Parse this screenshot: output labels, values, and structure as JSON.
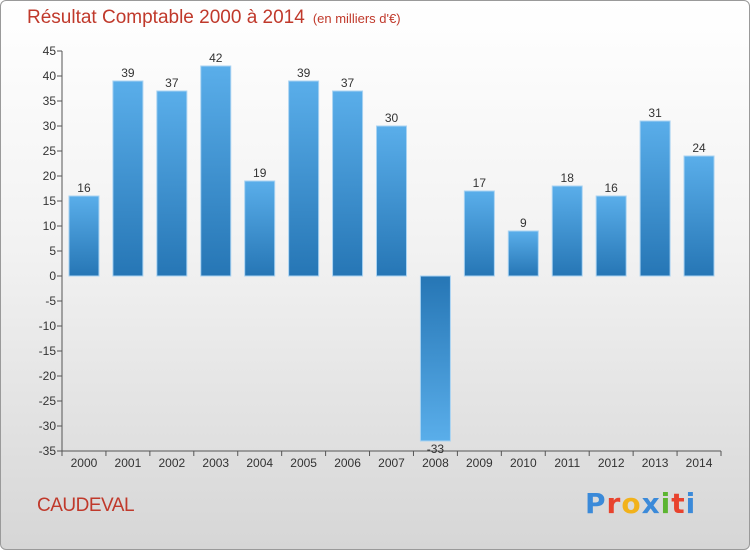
{
  "header": {
    "title": "Résultat Comptable 2000 à 2014",
    "unit": "(en milliers d'€)"
  },
  "footer": {
    "commune": "CAUDEVAL",
    "logo_text": "Proxiti"
  },
  "colors": {
    "title": "#c0392b",
    "bar_top": "#5aaeea",
    "bar_bottom": "#2676b5"
  },
  "chart_data": {
    "type": "bar",
    "title": "Résultat Comptable 2000 à 2014",
    "subtitle": "(en milliers d'€)",
    "xlabel": "",
    "ylabel": "",
    "categories": [
      "2000",
      "2001",
      "2002",
      "2003",
      "2004",
      "2005",
      "2006",
      "2007",
      "2008",
      "2009",
      "2010",
      "2011",
      "2012",
      "2013",
      "2014"
    ],
    "values": [
      16,
      39,
      37,
      42,
      19,
      39,
      37,
      30,
      -33,
      17,
      9,
      18,
      16,
      31,
      24
    ],
    "data_labels": [
      "16",
      "39",
      "37",
      "42",
      "19",
      "39",
      "37",
      "30",
      "-33",
      "17",
      "9",
      "18",
      "16",
      "31",
      "24"
    ],
    "ylim": [
      -35,
      45
    ],
    "yticks": [
      45,
      40,
      35,
      30,
      25,
      20,
      15,
      10,
      5,
      0,
      -5,
      -10,
      -15,
      -20,
      -25,
      -30,
      -35
    ],
    "ytick_labels": [
      "45",
      "40",
      "35",
      "30",
      "25",
      "20",
      "15",
      "10",
      "5",
      "0",
      "-5",
      "-10",
      "-15",
      "-20",
      "-25",
      "-30",
      "-35"
    ],
    "grid": false,
    "legend": "none"
  }
}
